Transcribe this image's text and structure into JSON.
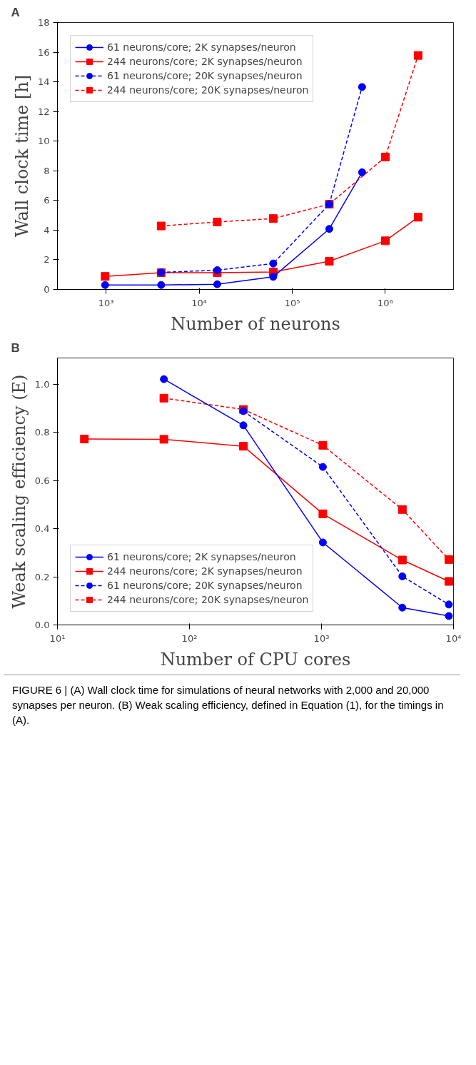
{
  "chart_data": [
    {
      "type": "line",
      "title": "A",
      "xlabel": "Number of neurons",
      "ylabel": "Wall clock time [h]",
      "log": "x",
      "grid": false,
      "legend": "top left",
      "xlim": [
        300,
        5400000
      ],
      "ylim": [
        0,
        18
      ],
      "xticks": [
        {
          "value": 1000,
          "label": "10³"
        },
        {
          "value": 10000,
          "label": "10⁴"
        },
        {
          "value": 100000,
          "label": "10⁵"
        },
        {
          "value": 1000000,
          "label": "10⁶"
        }
      ],
      "yticks": [
        0,
        2,
        4,
        6,
        8,
        10,
        12,
        14,
        16,
        18
      ],
      "series": [
        {
          "name": "61 neurons/core; 2K synapses/neuron",
          "color": "#0000ff",
          "marker": "circle",
          "line_style": "solid",
          "x": [
            976,
            3904,
            15616,
            62464,
            249856,
            562176
          ],
          "values": [
            0.3,
            0.3,
            0.35,
            0.85,
            4.08,
            7.9
          ]
        },
        {
          "name": "244 neurons/core; 2K synapses/neuron",
          "color": "#ff0000",
          "marker": "square",
          "line_style": "solid",
          "x": [
            976,
            3904,
            15616,
            62464,
            249856,
            999424,
            2248704
          ],
          "values": [
            0.88,
            1.13,
            1.13,
            1.18,
            1.9,
            3.28,
            4.87
          ]
        },
        {
          "name": "61 neurons/core; 20K synapses/neuron",
          "color": "#0000ff",
          "marker": "circle",
          "line_style": "dashed",
          "x": [
            3904,
            15616,
            62464,
            249856,
            562176
          ],
          "values": [
            1.15,
            1.3,
            1.75,
            5.75,
            13.65
          ]
        },
        {
          "name": "244 neurons/core; 20K synapses/neuron",
          "color": "#ff0000",
          "marker": "square",
          "line_style": "dashed",
          "x": [
            3904,
            15616,
            62464,
            249856,
            999424,
            2248704
          ],
          "values": [
            4.28,
            4.55,
            4.78,
            5.75,
            8.93,
            15.78
          ]
        }
      ]
    },
    {
      "type": "line",
      "title": "B",
      "xlabel": "Number of CPU cores",
      "ylabel": "Weak scaling efficiency (E)",
      "log": "x",
      "grid": false,
      "legend": "bottom left",
      "xlim": [
        10,
        10000
      ],
      "ylim": [
        0,
        1.11
      ],
      "xticks": [
        {
          "value": 10,
          "label": "10¹"
        },
        {
          "value": 100,
          "label": "10²"
        },
        {
          "value": 1000,
          "label": "10³"
        },
        {
          "value": 10000,
          "label": "10⁴"
        }
      ],
      "yticks": [
        {
          "value": 0,
          "label": "0.0"
        },
        0.2,
        0.4,
        0.6,
        0.8,
        {
          "value": 1,
          "label": "1.0"
        }
      ],
      "series": [
        {
          "name": "61 neurons/core; 2K synapses/neuron",
          "color": "#0000ff",
          "marker": "circle",
          "line_style": "solid",
          "x": [
            64,
            256,
            1024,
            4096,
            9216
          ],
          "values": [
            1.022,
            0.83,
            0.343,
            0.072,
            0.037
          ]
        },
        {
          "name": "244 neurons/core; 2K synapses/neuron",
          "color": "#ff0000",
          "marker": "square",
          "line_style": "solid",
          "x": [
            16,
            64,
            256,
            1024,
            4096,
            9216
          ],
          "values": [
            0.773,
            0.772,
            0.743,
            0.462,
            0.27,
            0.181
          ]
        },
        {
          "name": "61 neurons/core; 20K synapses/neuron",
          "color": "#0000ff",
          "marker": "circle",
          "line_style": "dashed",
          "x": [
            256,
            1024,
            4096,
            9216
          ],
          "values": [
            0.889,
            0.657,
            0.202,
            0.085
          ]
        },
        {
          "name": "244 neurons/core; 20K synapses/neuron",
          "color": "#ff0000",
          "marker": "square",
          "line_style": "dashed",
          "x": [
            64,
            256,
            1024,
            4096,
            9216
          ],
          "values": [
            0.943,
            0.896,
            0.747,
            0.48,
            0.272
          ]
        }
      ],
      "annotations": [
        "FIGURE 6 | (A) Wall clock time for simulations of neural networks with 2,000 and 20,000 synapses per neuron. (B) Weak scaling efficiency, defined in Equation (1), for the timings in (A)."
      ]
    }
  ]
}
